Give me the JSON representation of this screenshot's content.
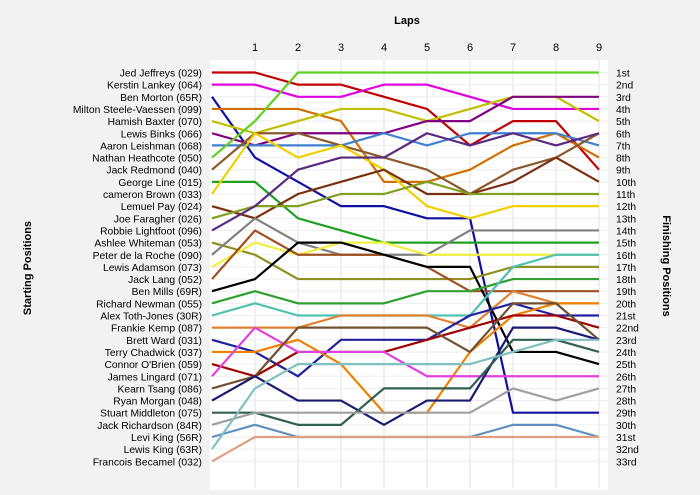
{
  "chart_data": {
    "type": "line",
    "title": "",
    "xlabel": "Laps",
    "ylabel_left": "Starting Positions",
    "ylabel_right": "Finishing Positions",
    "x": [
      0,
      1,
      2,
      3,
      4,
      5,
      6,
      7,
      8,
      9
    ],
    "x_tick_labels": [
      "1",
      "2",
      "3",
      "4",
      "5",
      "6",
      "7",
      "8",
      "9"
    ],
    "ylim": [
      1,
      33
    ],
    "grid": true,
    "starting_labels": [
      "Jed Jeffreys (029)",
      "Kerstin Lankey (064)",
      "Ben Morton (65R)",
      "Milton Steele-Vaessen (099)",
      "Hamish Baxter (070)",
      "Lewis Binks (066)",
      "Aaron Leishman (068)",
      "Nathan Heathcote (050)",
      "Jack Redmond (040)",
      "George Line (015)",
      "cameron Brown (033)",
      "Lemuel Pay (024)",
      "Joe Faragher (026)",
      "Robbie Lightfoot (096)",
      "Ashlee Whiteman (053)",
      "Peter de la Roche (090)",
      "Lewis Adamson (073)",
      "Jack Lang (052)",
      "Ben Mills (69R)",
      "Richard Newman (055)",
      "Alex Toth-Jones (30R)",
      "Frankie Kemp (087)",
      "Brett Ward (031)",
      "Terry Chadwick (037)",
      "Connor O'Brien (059)",
      "James Lingard (071)",
      "Kearn Tsang (086)",
      "Ryan Morgan (048)",
      "Stuart Middleton (075)",
      "Jack Richardson (84R)",
      "Levi King (56R)",
      "Lewis King (63R)",
      "Francois Becamel (032)"
    ],
    "finishing_labels": [
      "1st",
      "2nd",
      "3rd",
      "4th",
      "5th",
      "6th",
      "7th",
      "8th",
      "9th",
      "10th",
      "11th",
      "12th",
      "13th",
      "14th",
      "15th",
      "16th",
      "17th",
      "18th",
      "19th",
      "20th",
      "21st",
      "22nd",
      "23rd",
      "24th",
      "25th",
      "26th",
      "27th",
      "28th",
      "29th",
      "30th",
      "31st",
      "32nd",
      "33rd"
    ],
    "series": [
      {
        "color": "#c00000",
        "values": [
          1,
          1,
          2,
          2,
          3,
          4,
          7,
          5,
          5,
          9
        ]
      },
      {
        "color": "#e000e0",
        "values": [
          2,
          2,
          3,
          3,
          2,
          2,
          3,
          4,
          4,
          4
        ]
      },
      {
        "color": "#1010a0",
        "values": [
          3,
          8,
          10,
          12,
          12,
          13,
          13,
          29,
          29,
          29
        ]
      },
      {
        "color": "#d07000",
        "values": [
          4,
          4,
          4,
          5,
          10,
          10,
          9,
          7,
          6,
          8
        ]
      },
      {
        "color": "#c0c000",
        "values": [
          5,
          6,
          5,
          4,
          4,
          5,
          4,
          3,
          3,
          5
        ]
      },
      {
        "color": "#800080",
        "values": [
          6,
          7,
          6,
          6,
          6,
          5,
          5,
          3,
          3,
          3
        ]
      },
      {
        "color": "#4080d0",
        "values": [
          7,
          7,
          7,
          7,
          6,
          7,
          6,
          6,
          6,
          7
        ]
      },
      {
        "color": "#60d020",
        "values": [
          8,
          5,
          1,
          1,
          1,
          1,
          1,
          1,
          1,
          1
        ]
      },
      {
        "color": "#8a5a2a",
        "values": [
          9,
          6,
          6,
          7,
          8,
          9,
          11,
          9,
          8,
          6
        ]
      },
      {
        "color": "#20a020",
        "values": [
          10,
          10,
          13,
          14,
          15,
          15,
          15,
          15,
          15,
          15
        ]
      },
      {
        "color": "#f0d000",
        "values": [
          11,
          6,
          8,
          7,
          9,
          12,
          13,
          12,
          12,
          12
        ]
      },
      {
        "color": "#7a3010",
        "values": [
          12,
          13,
          11,
          10,
          9,
          11,
          11,
          10,
          8,
          10
        ]
      },
      {
        "color": "#80a020",
        "values": [
          13,
          12,
          12,
          11,
          11,
          10,
          11,
          11,
          11,
          11
        ]
      },
      {
        "color": "#5a2a80",
        "values": [
          14,
          12,
          9,
          8,
          8,
          6,
          7,
          6,
          7,
          6
        ]
      },
      {
        "color": "#909020",
        "values": [
          15,
          16,
          18,
          18,
          18,
          18,
          18,
          17,
          17,
          17
        ]
      },
      {
        "color": "#808080",
        "values": [
          16,
          13,
          15,
          16,
          16,
          16,
          14,
          14,
          14,
          14
        ]
      },
      {
        "color": "#f0f040",
        "values": [
          17,
          15,
          16,
          15,
          15,
          16,
          16,
          16,
          16,
          16
        ]
      },
      {
        "color": "#a05020",
        "values": [
          18,
          14,
          16,
          16,
          16,
          17,
          19,
          19,
          19,
          19
        ]
      },
      {
        "color": "#000000",
        "values": [
          19,
          18,
          15,
          15,
          16,
          17,
          17,
          24,
          24,
          25
        ]
      },
      {
        "color": "#30a030",
        "values": [
          20,
          19,
          20,
          20,
          20,
          19,
          19,
          18,
          18,
          18
        ]
      },
      {
        "color": "#50c0b0",
        "values": [
          21,
          20,
          21,
          21,
          21,
          21,
          21,
          17,
          16,
          16
        ]
      },
      {
        "color": "#e08030",
        "values": [
          22,
          22,
          22,
          21,
          21,
          21,
          22,
          19,
          20,
          20
        ]
      },
      {
        "color": "#2020a0",
        "values": [
          23,
          24,
          26,
          23,
          23,
          23,
          21,
          20,
          21,
          21
        ]
      },
      {
        "color": "#f08000",
        "values": [
          24,
          24,
          23,
          25,
          29,
          29,
          24,
          21,
          20,
          20
        ]
      },
      {
        "color": "#a00000",
        "values": [
          25,
          26,
          24,
          24,
          24,
          23,
          22,
          21,
          21,
          22
        ]
      },
      {
        "color": "#e040e0",
        "values": [
          26,
          22,
          24,
          24,
          24,
          26,
          26,
          26,
          26,
          26
        ]
      },
      {
        "color": "#705030",
        "values": [
          27,
          26,
          22,
          22,
          22,
          22,
          24,
          20,
          20,
          23
        ]
      },
      {
        "color": "#1a1a70",
        "values": [
          28,
          26,
          28,
          28,
          30,
          28,
          28,
          22,
          22,
          23
        ]
      },
      {
        "color": "#306050",
        "values": [
          29,
          29,
          30,
          30,
          27,
          27,
          27,
          23,
          23,
          24
        ]
      },
      {
        "color": "#a0a0a0",
        "values": [
          30,
          29,
          29,
          29,
          29,
          29,
          29,
          27,
          28,
          27
        ]
      },
      {
        "color": "#6090c0",
        "values": [
          31,
          30,
          31,
          31,
          31,
          31,
          31,
          30,
          30,
          31
        ]
      },
      {
        "color": "#80c0c0",
        "values": [
          32,
          27,
          25,
          25,
          25,
          25,
          25,
          24,
          23,
          23
        ]
      },
      {
        "color": "#e0a080",
        "values": [
          33,
          31,
          31,
          31,
          31,
          31,
          31,
          31,
          31,
          31
        ]
      }
    ]
  }
}
